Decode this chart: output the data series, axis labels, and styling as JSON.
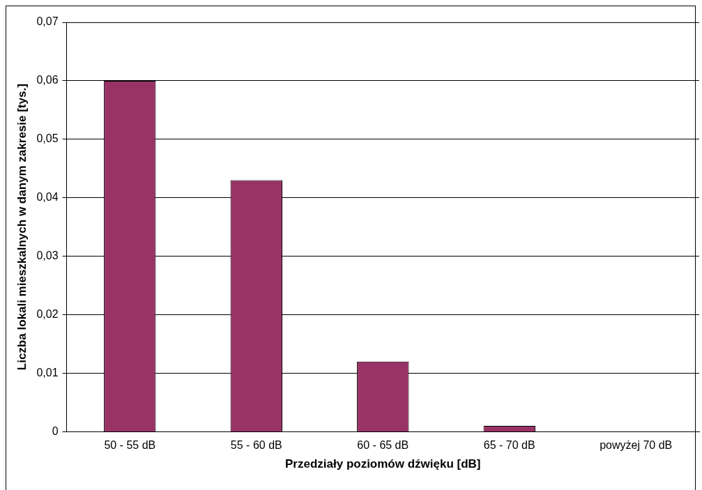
{
  "chart_data": {
    "type": "bar",
    "xlabel": "Przedziały poziomów dźwięku [dB]",
    "ylabel": "Liczba lokali mieszkalnych w danym zakresie [tys.]",
    "categories": [
      "50 - 55 dB",
      "55 - 60 dB",
      "60 - 65 dB",
      "65 - 70 dB",
      "powyżej 70 dB"
    ],
    "values": [
      0.06,
      0.043,
      0.012,
      0.001,
      0
    ],
    "color": "#993366",
    "ylim": [
      0,
      0.07
    ],
    "yticks": [
      {
        "value": 0,
        "label": "0"
      },
      {
        "value": 0.01,
        "label": "0,01"
      },
      {
        "value": 0.02,
        "label": "0,02"
      },
      {
        "value": 0.03,
        "label": "0,03"
      },
      {
        "value": 0.04,
        "label": "0,04"
      },
      {
        "value": 0.05,
        "label": "0,05"
      },
      {
        "value": 0.06,
        "label": "0,06"
      },
      {
        "value": 0.07,
        "label": "0,07"
      }
    ],
    "grid": "y",
    "legend": false
  }
}
